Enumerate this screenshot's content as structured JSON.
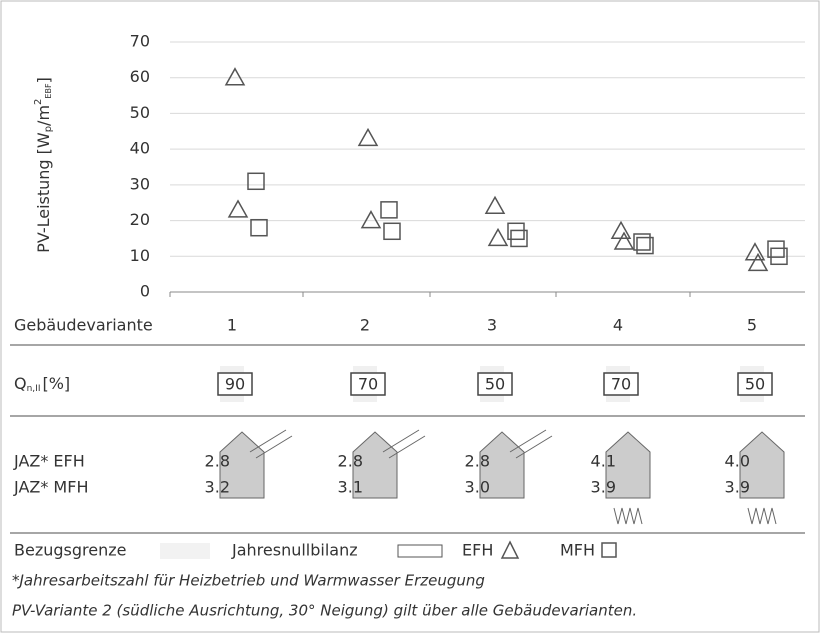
{
  "chart_data": {
    "type": "scatter",
    "y_label": {
      "main": "PV-Leistung [W",
      "sub1": "p",
      "mid": "/m",
      "sup": "2",
      "sub2": "EBF",
      "end": "]"
    },
    "categories": [
      "1",
      "2",
      "3",
      "4",
      "5"
    ],
    "category_label": "Gebäudevariante",
    "series": [
      {
        "name": "EFH",
        "marker": "triangle",
        "color": "#555555",
        "values": [
          [
            60,
            23
          ],
          [
            43,
            20
          ],
          [
            24,
            15
          ],
          [
            17,
            14
          ],
          [
            11,
            8
          ]
        ]
      },
      {
        "name": "MFH",
        "marker": "square",
        "color": "#555555",
        "values": [
          [
            31,
            18
          ],
          [
            23,
            17
          ],
          [
            17,
            15
          ],
          [
            14,
            13
          ],
          [
            12,
            10
          ]
        ]
      }
    ],
    "ylim": [
      0,
      70
    ],
    "yticks": [
      0,
      10,
      20,
      30,
      40,
      50,
      60,
      70
    ],
    "grid": true,
    "q_row": {
      "label": {
        "main": "Q",
        "sub": "n,II",
        "end": "[%]"
      },
      "values": [
        90,
        70,
        50,
        70,
        50
      ]
    },
    "jaz_rows": [
      {
        "label": "JAZ* EFH",
        "values": [
          2.8,
          2.8,
          2.8,
          4.1,
          4.0
        ],
        "value_labels": [
          "2.8",
          "2.8",
          "2.8",
          "4.1",
          "4.0"
        ]
      },
      {
        "label": "JAZ* MFH",
        "values": [
          3.2,
          3.1,
          3.0,
          3.9,
          3.9
        ],
        "value_labels": [
          "3.2",
          "3.1",
          "3.0",
          "3.9",
          "3.9"
        ]
      }
    ],
    "legend": {
      "bezugsgrenze": "Bezugsgrenze",
      "jahresnullbilanz": "Jahresnullbilanz"
    },
    "footnotes": [
      "*Jahresarbeitszahl für Heizbetrieb und Warmwasser Erzeugung",
      "PV-Variante 2 (südliche Ausrichtung, 30° Neigung) gilt über alle Gebäudevarianten."
    ]
  }
}
